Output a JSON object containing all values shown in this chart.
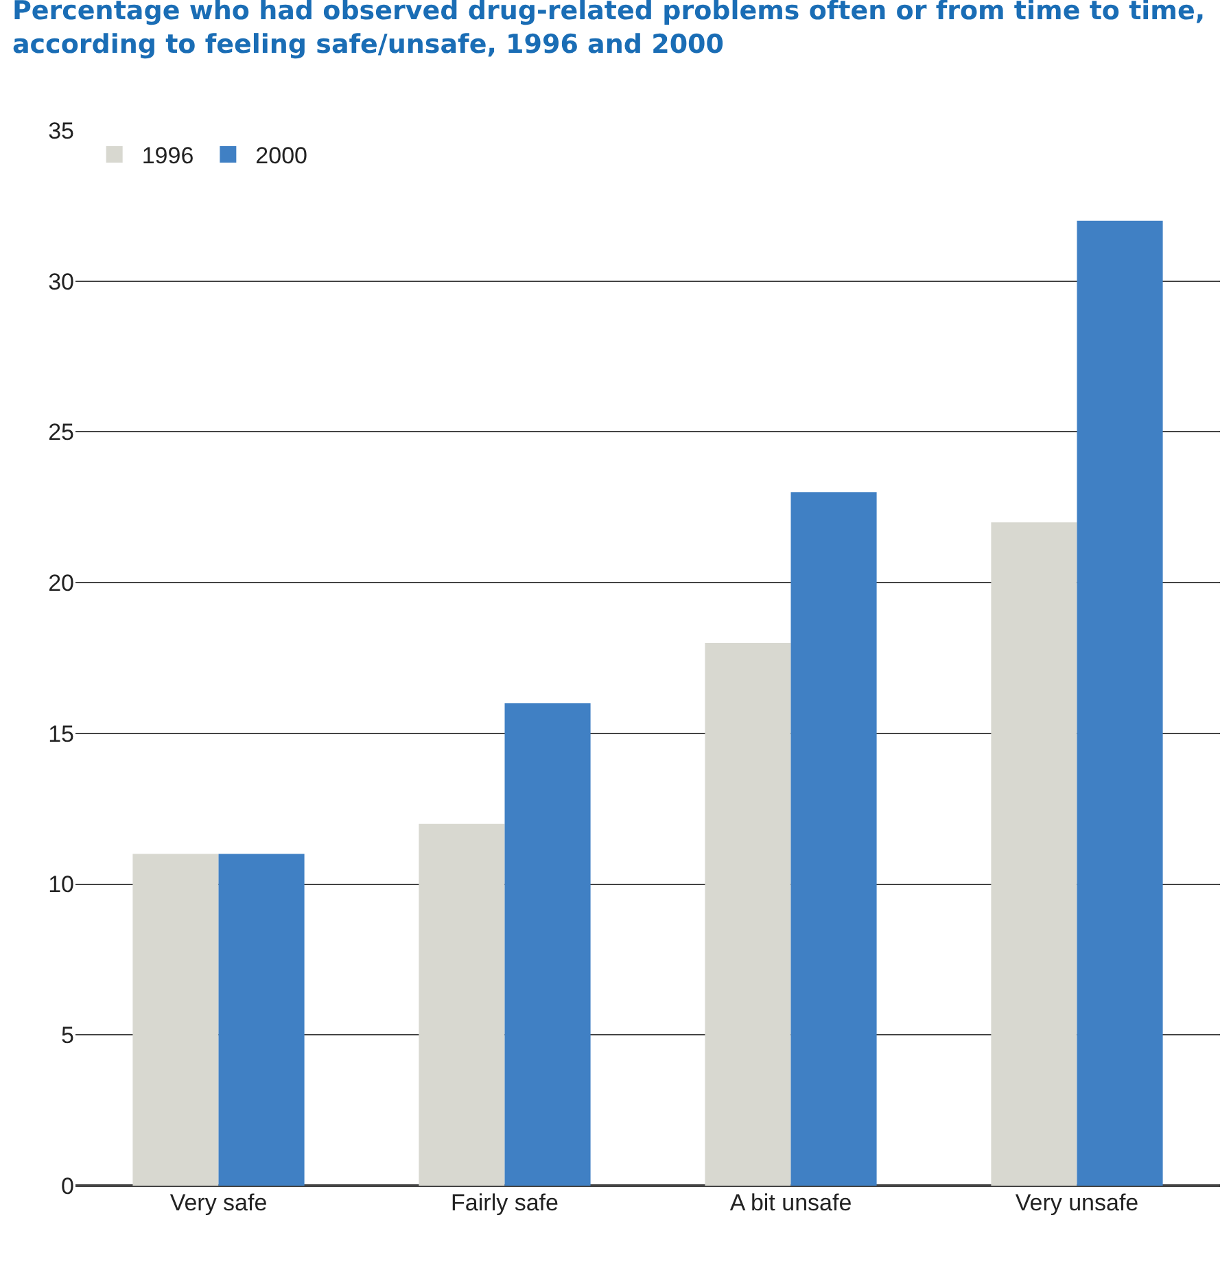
{
  "chart_data": {
    "type": "bar",
    "title": "Percentage who had observed drug-related problems often or from time to time, according to feeling safe/unsafe, 1996 and 2000",
    "categories": [
      "Very safe",
      "Fairly safe",
      "A bit unsafe",
      "Very unsafe"
    ],
    "series": [
      {
        "name": "1996",
        "color": "#d8d8d0",
        "values": [
          11,
          12,
          18,
          22
        ]
      },
      {
        "name": "2000",
        "color": "#4080c4",
        "values": [
          11,
          16,
          23,
          32
        ]
      }
    ],
    "ylim": [
      0,
      35
    ],
    "yticks": [
      0,
      5,
      10,
      15,
      20,
      25,
      30,
      35
    ],
    "grid": "y",
    "legend": "top left"
  }
}
